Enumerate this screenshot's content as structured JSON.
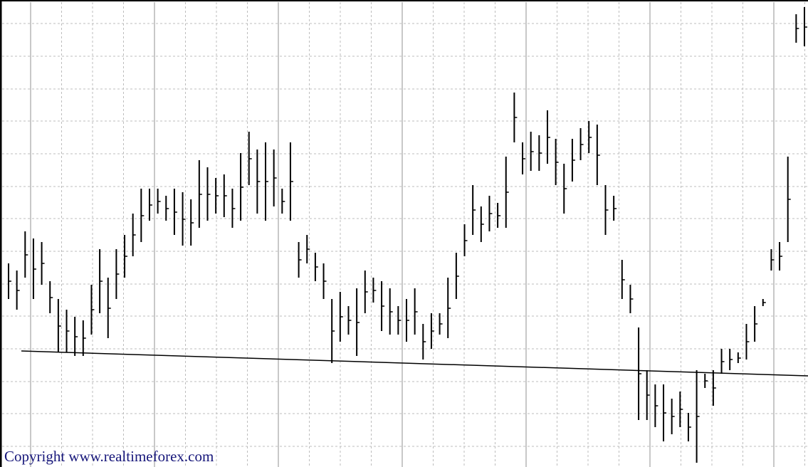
{
  "chart_data": {
    "type": "ohlc",
    "copyright": "Copyright www.realtimeforex.com",
    "color": "#000000",
    "grid": true,
    "ylim": [
      0,
      656
    ],
    "yticks": [
      623,
      577,
      531,
      486,
      440,
      394,
      349,
      303,
      257,
      212,
      166,
      120,
      75,
      29
    ],
    "high": [
      286,
      276,
      331,
      321,
      316,
      261,
      236,
      221,
      211,
      206,
      256,
      306,
      266,
      306,
      326,
      356,
      391,
      391,
      391,
      381,
      391,
      386,
      376,
      431,
      421,
      406,
      411,
      391,
      441,
      471,
      446,
      456,
      446,
      391,
      456,
      316,
      326,
      301,
      286,
      236,
      246,
      226,
      251,
      276,
      266,
      261,
      251,
      226,
      236,
      251,
      201,
      216,
      216,
      266,
      301,
      341,
      396,
      366,
      381,
      371,
      436,
      526,
      456,
      471,
      466,
      501,
      461,
      426,
      461,
      476,
      486,
      481,
      396,
      381,
      291,
      256,
      196,
      136,
      116,
      116,
      96,
      106,
      76,
      136,
      131,
      136,
      166,
      166,
      161,
      201,
      226,
      236,
      306,
      316,
      436,
      636,
      646
    ],
    "low": [
      236,
      221,
      266,
      236,
      256,
      216,
      161,
      161,
      156,
      156,
      186,
      216,
      181,
      236,
      266,
      296,
      316,
      346,
      356,
      346,
      326,
      311,
      311,
      336,
      346,
      356,
      351,
      336,
      346,
      396,
      356,
      346,
      366,
      356,
      346,
      266,
      286,
      261,
      236,
      146,
      176,
      186,
      156,
      216,
      231,
      191,
      186,
      186,
      176,
      186,
      151,
      166,
      186,
      181,
      236,
      296,
      326,
      316,
      331,
      336,
      336,
      456,
      411,
      416,
      416,
      426,
      396,
      356,
      401,
      431,
      441,
      396,
      326,
      346,
      236,
      216,
      66,
      66,
      56,
      36,
      46,
      56,
      36,
      6,
      111,
      86,
      131,
      136,
      146,
      151,
      176,
      226,
      276,
      276,
      316,
      596,
      591
    ],
    "close": [
      261,
      248,
      298,
      278,
      286,
      238,
      198,
      191,
      183,
      181,
      221,
      261,
      223,
      271,
      296,
      326,
      353,
      368,
      373,
      363,
      358,
      348,
      343,
      383,
      383,
      381,
      381,
      363,
      393,
      433,
      401,
      401,
      406,
      373,
      401,
      291,
      306,
      281,
      261,
      191,
      211,
      206,
      203,
      246,
      248,
      226,
      218,
      206,
      206,
      218,
      176,
      191,
      201,
      223,
      268,
      318,
      361,
      341,
      356,
      353,
      386,
      491,
      433,
      443,
      441,
      463,
      428,
      391,
      431,
      453,
      463,
      438,
      361,
      363,
      263,
      236,
      131,
      101,
      86,
      76,
      71,
      81,
      56,
      71,
      121,
      111,
      148,
      151,
      153,
      176,
      201,
      231,
      291,
      296,
      376,
      616,
      618
    ],
    "trendline": [
      163,
      128
    ]
  }
}
